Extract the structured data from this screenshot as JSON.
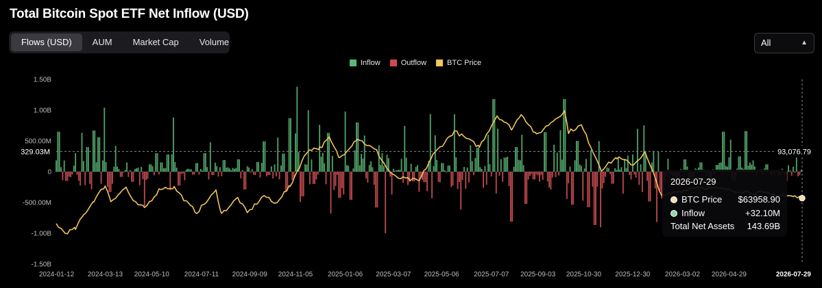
{
  "title": "Total Bitcoin Spot ETF Net Inflow (USD)",
  "tabs": [
    {
      "label": "Flows (USD)",
      "active": true
    },
    {
      "label": "AUM",
      "active": false
    },
    {
      "label": "Market Cap",
      "active": false
    },
    {
      "label": "Volume",
      "active": false
    }
  ],
  "range": {
    "value": "All"
  },
  "legend": [
    {
      "label": "Inflow",
      "color": "#5db874"
    },
    {
      "label": "Outflow",
      "color": "#cf4a4f"
    },
    {
      "label": "BTC Price",
      "color": "#f1c65a"
    }
  ],
  "crosshair": {
    "y_label": "329.03M",
    "price_label": "93,076.79",
    "date_label": "2026-07-29"
  },
  "tooltip": {
    "date": "2026-07-29",
    "rows": [
      {
        "label": "BTC Price",
        "value": "$63958.90",
        "dot": "#f5deb0"
      },
      {
        "label": "Inflow",
        "value": "+32.10M",
        "dot": "#8fd6a6"
      },
      {
        "label": "Total Net Assets",
        "value": "143.69B",
        "dot": ""
      }
    ]
  },
  "chart_data": {
    "type": "bar",
    "title": "Total Bitcoin Spot ETF Net Inflow (USD)",
    "y_ticks": [
      "1.50B",
      "1.00B",
      "500.00M",
      "0",
      "-500.00M",
      "-1.00B",
      "-1.50B"
    ],
    "ylim": [
      -1500000000,
      1500000000
    ],
    "x_ticks": [
      "2024-01-12",
      "2024-03-13",
      "2024-05-10",
      "2024-07-11",
      "2024-09-09",
      "2024-11-05",
      "2025-01-06",
      "2025-03-07",
      "2025-05-06",
      "2025-07-07",
      "2025-09-03",
      "2025-10-30",
      "2025-12-30",
      "2026-03-02",
      "2026-04-29",
      "2026-07-29"
    ],
    "x_range": [
      "2024-01-12",
      "2026-07-29"
    ],
    "series": [
      {
        "name": "Inflow",
        "color": "#5db874"
      },
      {
        "name": "Outflow",
        "color": "#cf4a4f"
      },
      {
        "name": "BTC Price",
        "color": "#f1c65a"
      }
    ],
    "flow_points": [
      [
        "2024-01-15",
        650
      ],
      [
        "2024-01-25",
        -150
      ],
      [
        "2024-02-05",
        300
      ],
      [
        "2024-02-13",
        630
      ],
      [
        "2024-02-20",
        400
      ],
      [
        "2024-02-28",
        670
      ],
      [
        "2024-03-05",
        560
      ],
      [
        "2024-03-12",
        1040
      ],
      [
        "2024-03-19",
        -330
      ],
      [
        "2024-03-26",
        420
      ],
      [
        "2024-04-02",
        -85
      ],
      [
        "2024-04-09",
        150
      ],
      [
        "2024-04-16",
        -165
      ],
      [
        "2024-04-25",
        -220
      ],
      [
        "2024-05-01",
        -560
      ],
      [
        "2024-05-08",
        120
      ],
      [
        "2024-05-16",
        300
      ],
      [
        "2024-05-22",
        150
      ],
      [
        "2024-05-30",
        280
      ],
      [
        "2024-06-06",
        880
      ],
      [
        "2024-06-13",
        -225
      ],
      [
        "2024-06-20",
        -140
      ],
      [
        "2024-06-27",
        40
      ],
      [
        "2024-07-05",
        140
      ],
      [
        "2024-07-15",
        300
      ],
      [
        "2024-07-22",
        480
      ],
      [
        "2024-08-01",
        -80
      ],
      [
        "2024-08-08",
        190
      ],
      [
        "2024-08-19",
        62
      ],
      [
        "2024-08-26",
        202
      ],
      [
        "2024-09-03",
        -288
      ],
      [
        "2024-09-12",
        40
      ],
      [
        "2024-09-19",
        158
      ],
      [
        "2024-09-27",
        494
      ],
      [
        "2024-10-03",
        -54
      ],
      [
        "2024-10-14",
        555
      ],
      [
        "2024-10-21",
        294
      ],
      [
        "2024-10-29",
        870
      ],
      [
        "2024-11-05",
        621
      ],
      [
        "2024-11-07",
        1380
      ],
      [
        "2024-11-14",
        -400
      ],
      [
        "2024-11-21",
        1000
      ],
      [
        "2024-11-28",
        -200
      ],
      [
        "2024-12-05",
        760
      ],
      [
        "2024-12-16",
        630
      ],
      [
        "2024-12-19",
        -680
      ],
      [
        "2024-12-30",
        -426
      ],
      [
        "2025-01-06",
        978
      ],
      [
        "2025-01-13",
        -457
      ],
      [
        "2025-01-21",
        800
      ],
      [
        "2025-01-30",
        588
      ],
      [
        "2025-02-07",
        170
      ],
      [
        "2025-02-14",
        -580
      ],
      [
        "2025-02-25",
        -1000
      ],
      [
        "2025-03-05",
        -370
      ],
      [
        "2025-03-14",
        30
      ],
      [
        "2025-03-21",
        744
      ],
      [
        "2025-04-01",
        -157
      ],
      [
        "2025-04-08",
        -326
      ],
      [
        "2025-04-15",
        -170
      ],
      [
        "2025-04-22",
        936
      ],
      [
        "2025-04-28",
        591
      ],
      [
        "2025-05-07",
        140
      ],
      [
        "2025-05-15",
        100
      ],
      [
        "2025-05-22",
        934
      ],
      [
        "2025-05-30",
        -616
      ],
      [
        "2025-06-05",
        -278
      ],
      [
        "2025-06-11",
        430
      ],
      [
        "2025-06-20",
        389
      ],
      [
        "2025-07-03",
        600
      ],
      [
        "2025-07-10",
        1180
      ],
      [
        "2025-07-15",
        700
      ],
      [
        "2025-07-24",
        230
      ],
      [
        "2025-08-01",
        -812
      ],
      [
        "2025-08-07",
        400
      ],
      [
        "2025-08-14",
        600
      ],
      [
        "2025-08-19",
        -523
      ],
      [
        "2025-08-29",
        -126
      ],
      [
        "2025-09-05",
        -160
      ],
      [
        "2025-09-12",
        642
      ],
      [
        "2025-09-23",
        440
      ],
      [
        "2025-10-01",
        675
      ],
      [
        "2025-10-06",
        1180
      ],
      [
        "2025-10-16",
        -536
      ],
      [
        "2025-10-22",
        500
      ],
      [
        "2025-10-29",
        -470
      ],
      [
        "2025-11-05",
        -577
      ],
      [
        "2025-11-13",
        -866
      ],
      [
        "2025-11-20",
        -903
      ],
      [
        "2025-11-28",
        70
      ],
      [
        "2025-12-05",
        -195
      ],
      [
        "2025-12-12",
        223
      ],
      [
        "2025-12-18",
        -357
      ],
      [
        "2026-01-05",
        697
      ],
      [
        "2026-01-13",
        753
      ],
      [
        "2026-01-20",
        -483
      ],
      [
        "2026-01-29",
        -818
      ],
      [
        "2026-02-05",
        -434
      ],
      [
        "2026-02-12",
        210
      ],
      [
        "2026-02-25",
        -250
      ],
      [
        "2026-03-05",
        200
      ],
      [
        "2026-03-13",
        -150
      ],
      [
        "2026-03-25",
        150
      ],
      [
        "2026-04-06",
        -120
      ],
      [
        "2026-04-14",
        110
      ],
      [
        "2026-04-22",
        650
      ],
      [
        "2026-05-01",
        520
      ],
      [
        "2026-05-06",
        -150
      ],
      [
        "2026-05-12",
        250
      ],
      [
        "2026-05-20",
        660
      ],
      [
        "2026-06-02",
        -80
      ],
      [
        "2026-06-15",
        120
      ],
      [
        "2026-07-10",
        -150
      ],
      [
        "2026-07-22",
        230
      ],
      [
        "2026-07-29",
        32.1
      ]
    ],
    "flow_units": "millions USD",
    "price_points": [
      [
        "2024-01-12",
        46000
      ],
      [
        "2024-01-23",
        39500
      ],
      [
        "2024-02-05",
        42500
      ],
      [
        "2024-02-15",
        52000
      ],
      [
        "2024-02-28",
        62500
      ],
      [
        "2024-03-13",
        73000
      ],
      [
        "2024-03-20",
        62000
      ],
      [
        "2024-04-08",
        71600
      ],
      [
        "2024-04-17",
        61200
      ],
      [
        "2024-05-01",
        57000
      ],
      [
        "2024-05-21",
        71000
      ],
      [
        "2024-06-07",
        71500
      ],
      [
        "2024-06-24",
        60000
      ],
      [
        "2024-07-05",
        54000
      ],
      [
        "2024-07-29",
        69000
      ],
      [
        "2024-08-05",
        53000
      ],
      [
        "2024-08-25",
        64200
      ],
      [
        "2024-09-06",
        53500
      ],
      [
        "2024-09-27",
        66000
      ],
      [
        "2024-10-10",
        60000
      ],
      [
        "2024-10-29",
        72000
      ],
      [
        "2024-11-13",
        90000
      ],
      [
        "2024-11-22",
        98500
      ],
      [
        "2024-12-05",
        99000
      ],
      [
        "2024-12-17",
        106000
      ],
      [
        "2024-12-30",
        92000
      ],
      [
        "2025-01-21",
        106000
      ],
      [
        "2025-02-14",
        97000
      ],
      [
        "2025-02-28",
        84000
      ],
      [
        "2025-03-10",
        78500
      ],
      [
        "2025-04-08",
        76000
      ],
      [
        "2025-04-25",
        94000
      ],
      [
        "2025-05-22",
        111000
      ],
      [
        "2025-06-22",
        100000
      ],
      [
        "2025-07-14",
        122000
      ],
      [
        "2025-08-02",
        112500
      ],
      [
        "2025-08-13",
        123500
      ],
      [
        "2025-09-01",
        108000
      ],
      [
        "2025-09-19",
        117000
      ],
      [
        "2025-10-06",
        125000
      ],
      [
        "2025-10-11",
        110500
      ],
      [
        "2025-10-27",
        115000
      ],
      [
        "2025-11-21",
        84000
      ],
      [
        "2025-12-10",
        92500
      ],
      [
        "2025-12-31",
        87500
      ],
      [
        "2026-01-14",
        96000
      ],
      [
        "2026-02-05",
        65000
      ],
      [
        "2026-02-20",
        68000
      ],
      [
        "2026-03-20",
        72000
      ],
      [
        "2026-07-20",
        65000
      ],
      [
        "2026-07-29",
        63958.9
      ]
    ],
    "price_units": "USD"
  }
}
